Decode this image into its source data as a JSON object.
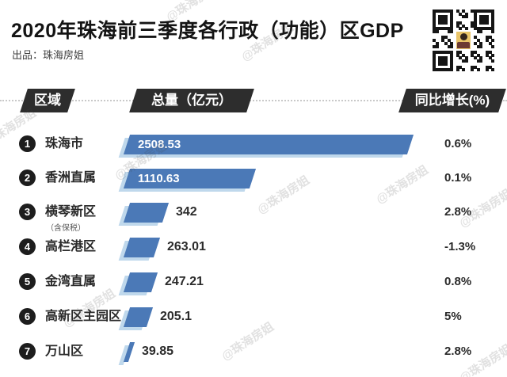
{
  "page": {
    "title": "2020年珠海前三季度各行政（功能）区GDP",
    "byline": "出品：珠海房姐",
    "watermark": "@珠海房姐"
  },
  "columns": {
    "region": "区域",
    "total": "总量（亿元）",
    "growth": "同比增长(%)"
  },
  "colors": {
    "bar": "#4b79b7",
    "bar_shadow": "#bfd8ec",
    "header_box": "#2d2d2d",
    "rank_circle": "#1d1d1d"
  },
  "chart_data": {
    "type": "bar",
    "orientation": "horizontal",
    "title": "2020年珠海前三季度各行政（功能）区GDP",
    "xlabel": "总量（亿元）",
    "ylabel": "区域",
    "xlim": [
      0,
      2600
    ],
    "legend": false,
    "grid": false,
    "categories": [
      "珠海市",
      "香洲直属",
      "横琴新区（含保税）",
      "高栏港区",
      "金湾直属",
      "高新区主园区",
      "万山区"
    ],
    "values": [
      2508.53,
      1110.63,
      342,
      263.01,
      247.21,
      205.1,
      39.85
    ],
    "growth_pct": [
      0.6,
      0.1,
      2.8,
      -1.3,
      0.8,
      5,
      2.8
    ],
    "max_value": 2508.53,
    "rows": [
      {
        "rank": "1",
        "region": "珠海市",
        "note": "",
        "value": 2508.53,
        "value_label": "2508.53",
        "growth": "0.6%",
        "label_inside": true
      },
      {
        "rank": "2",
        "region": "香洲直属",
        "note": "",
        "value": 1110.63,
        "value_label": "1110.63",
        "growth": "0.1%",
        "label_inside": true
      },
      {
        "rank": "3",
        "region": "横琴新区",
        "note": "（含保税）",
        "value": 342,
        "value_label": "342",
        "growth": "2.8%",
        "label_inside": false
      },
      {
        "rank": "4",
        "region": "高栏港区",
        "note": "",
        "value": 263.01,
        "value_label": "263.01",
        "growth": "-1.3%",
        "label_inside": false
      },
      {
        "rank": "5",
        "region": "金湾直属",
        "note": "",
        "value": 247.21,
        "value_label": "247.21",
        "growth": "0.8%",
        "label_inside": false
      },
      {
        "rank": "6",
        "region": "高新区主园区",
        "note": "",
        "value": 205.1,
        "value_label": "205.1",
        "growth": "5%",
        "label_inside": false
      },
      {
        "rank": "7",
        "region": "万山区",
        "note": "",
        "value": 39.85,
        "value_label": "39.85",
        "growth": "2.8%",
        "label_inside": false
      }
    ]
  }
}
